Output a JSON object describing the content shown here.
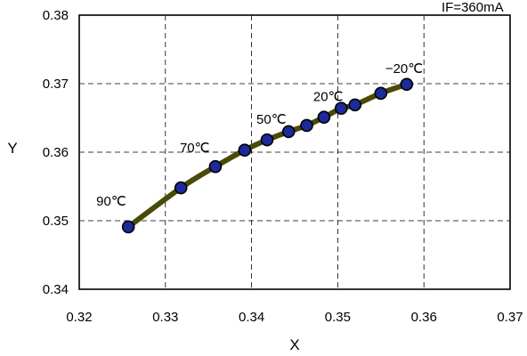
{
  "chart_data": {
    "type": "line",
    "title": "",
    "xlabel": "X",
    "ylabel": "Y",
    "xlim": [
      0.32,
      0.37
    ],
    "ylim": [
      0.34,
      0.38
    ],
    "x_ticks": [
      "0.32",
      "0.33",
      "0.34",
      "0.35",
      "0.36",
      "0.37"
    ],
    "y_ticks": [
      "0.34",
      "0.35",
      "0.36",
      "0.37",
      "0.38"
    ],
    "grid": true,
    "series": [
      {
        "x": [
          0.3257,
          0.3318,
          0.3358,
          0.3392,
          0.3418,
          0.3443,
          0.3464,
          0.3484,
          0.3504,
          0.352,
          0.355,
          0.358
        ],
        "y": [
          0.3491,
          0.3548,
          0.3579,
          0.3603,
          0.3618,
          0.363,
          0.3639,
          0.3651,
          0.3664,
          0.3669,
          0.3686,
          0.3699
        ]
      }
    ],
    "annotations": [
      {
        "text": "90℃",
        "x": 0.3257,
        "y": 0.3491
      },
      {
        "text": "70℃",
        "x": 0.3358,
        "y": 0.3579
      },
      {
        "text": "50℃",
        "x": 0.3418,
        "y": 0.3618
      },
      {
        "text": "20℃",
        "x": 0.3484,
        "y": 0.3651
      },
      {
        "text": "−20℃",
        "x": 0.358,
        "y": 0.3699
      }
    ],
    "condition_label": "IF=360mA"
  },
  "colors": {
    "curve": "#4a4a08",
    "marker": "#1c2a9a",
    "axis": "#000000",
    "background": "#ffffff"
  }
}
